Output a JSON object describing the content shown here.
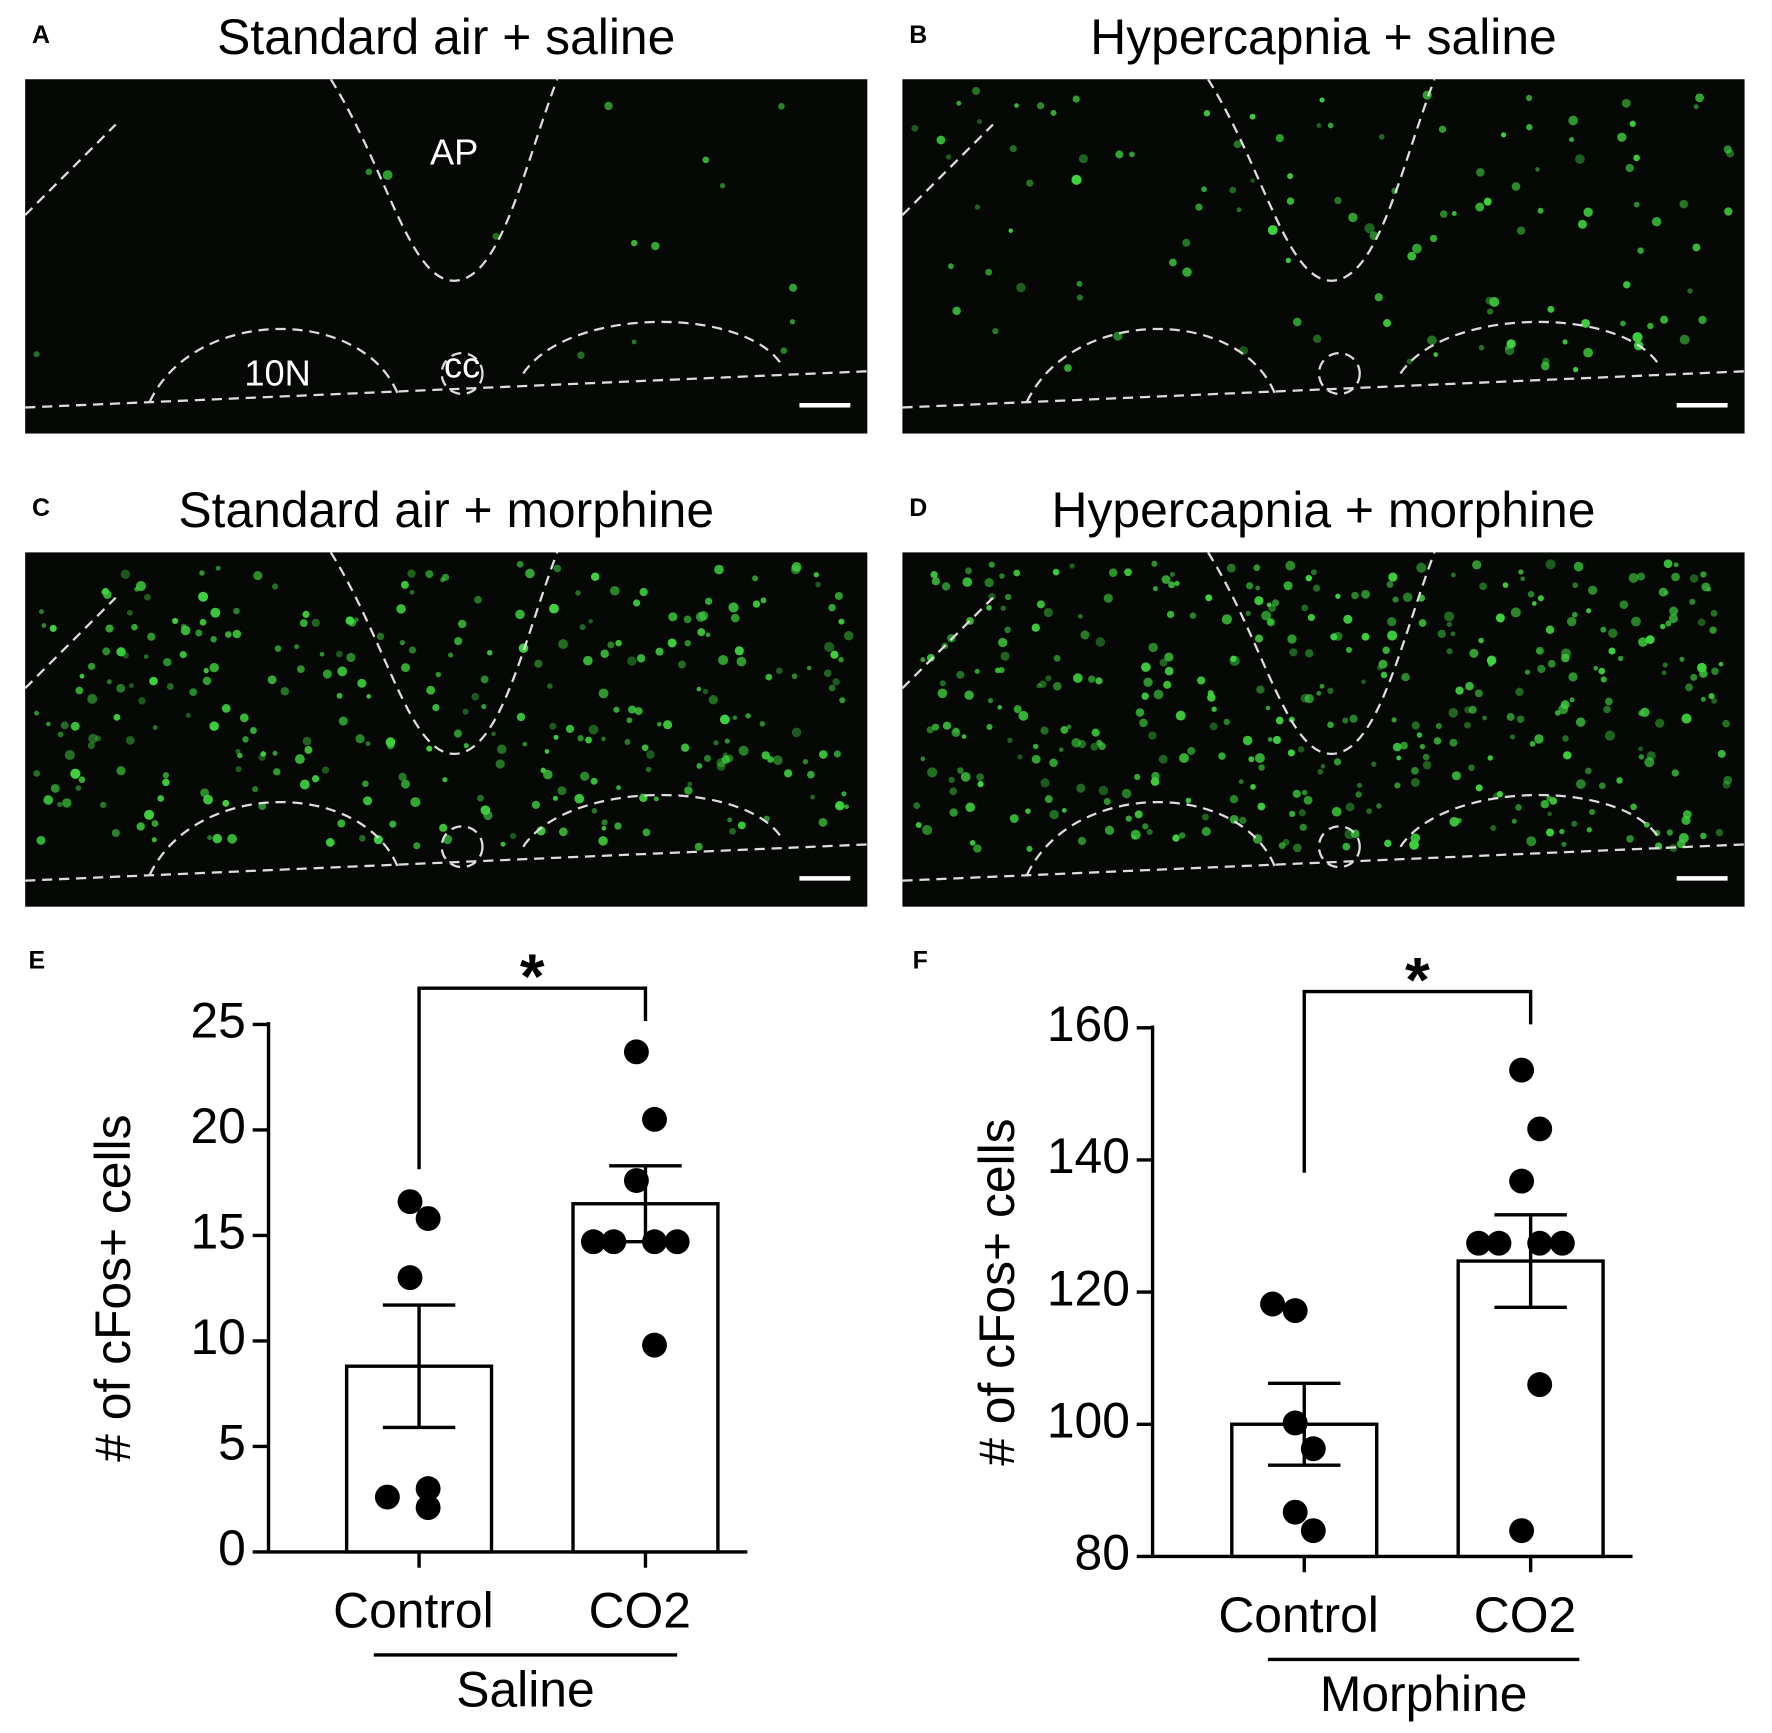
{
  "panels": [
    {
      "label": "A",
      "title": "Standard air + saline"
    },
    {
      "label": "B",
      "title": "Hypercapnia + saline"
    },
    {
      "label": "C",
      "title": "Standard air + morphine"
    },
    {
      "label": "D",
      "title": "Hypercapnia + morphine"
    }
  ],
  "annotations": [
    "AP",
    "10N",
    "cc"
  ],
  "chart_data": [
    {
      "type": "bar",
      "panel_label": "E",
      "ylabel": "# of cFos+ cells",
      "categories": [
        "Control",
        "CO2"
      ],
      "values": [
        8.8,
        16.5
      ],
      "errors": [
        2.9,
        1.8
      ],
      "points": [
        [
          16.6,
          15.8,
          13.0,
          3.0,
          2.6,
          2.1
        ],
        [
          23.7,
          20.5,
          17.6,
          14.7,
          14.7,
          14.7,
          14.7,
          9.8
        ]
      ],
      "group_label": "Saline",
      "significance": "*",
      "ylim": [
        0,
        25
      ],
      "yticks": [
        0,
        5,
        10,
        15,
        20,
        25
      ],
      "color": "#ffffff"
    },
    {
      "type": "bar",
      "panel_label": "F",
      "ylabel": "# of cFos+ cells",
      "categories": [
        "Control",
        "CO2"
      ],
      "values": [
        100.0,
        124.7
      ],
      "errors": [
        6.2,
        7.0
      ],
      "points": [
        [
          117.2,
          118.2,
          100.2,
          96.3,
          86.7,
          83.9
        ],
        [
          153.6,
          144.7,
          136.8,
          127.4,
          127.4,
          127.4,
          127.4,
          106.0,
          83.9
        ]
      ],
      "group_label": "Morphine",
      "significance": "*",
      "ylim": [
        80,
        160
      ],
      "yticks": [
        80,
        100,
        120,
        140,
        160
      ],
      "color": "#ffffff"
    }
  ]
}
